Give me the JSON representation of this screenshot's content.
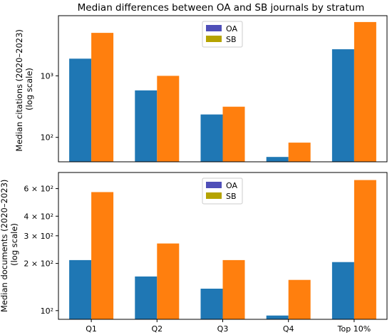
{
  "figure": {
    "title": "Median differences between OA and SB journals by stratum"
  },
  "colors": {
    "oa_bar": "#1f77b4",
    "sb_bar": "#ff7f0e",
    "oa_legend": "#4f4fb8",
    "sb_legend": "#b5a300"
  },
  "chart_data": [
    {
      "type": "bar",
      "scale": "log",
      "categories": [
        "Q1",
        "Q2",
        "Q3",
        "Q4",
        "Top 10%"
      ],
      "series": [
        {
          "name": "OA",
          "values": [
            1900,
            580,
            235,
            48,
            2700
          ]
        },
        {
          "name": "SB",
          "values": [
            5000,
            1000,
            315,
            82,
            7500
          ]
        }
      ],
      "ylabel": "Median citations (2020–2023)\n(log scale)",
      "ylim": [
        40,
        9500
      ],
      "yticks": [
        {
          "value": 100,
          "label": "10²"
        },
        {
          "value": 1000,
          "label": "10³"
        }
      ],
      "legend": "top-center",
      "grid": false
    },
    {
      "type": "bar",
      "scale": "log",
      "categories": [
        "Q1",
        "Q2",
        "Q3",
        "Q4",
        "Top 10%"
      ],
      "series": [
        {
          "name": "OA",
          "values": [
            210,
            165,
            138,
            93,
            204
          ]
        },
        {
          "name": "SB",
          "values": [
            570,
            268,
            210,
            157,
            680
          ]
        }
      ],
      "ylabel": "Median documents (2020–2023)\n(log scale)",
      "ylim": [
        88,
        760
      ],
      "yticks": [
        {
          "value": 100,
          "label": "10²"
        },
        {
          "value": 200,
          "label": "2 × 10²"
        },
        {
          "value": 300,
          "label": "3 × 10²"
        },
        {
          "value": 400,
          "label": "4 × 10²"
        },
        {
          "value": 600,
          "label": "6 × 10²"
        }
      ],
      "legend": "top-center",
      "grid": false
    }
  ]
}
